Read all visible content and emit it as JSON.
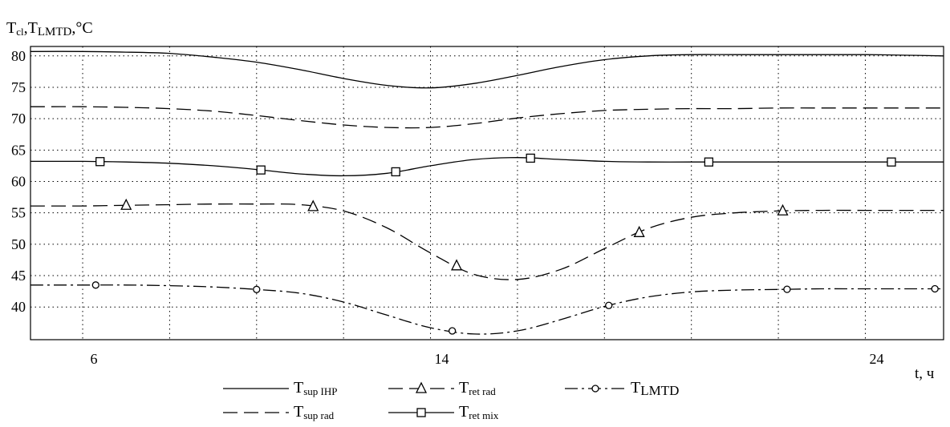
{
  "chart_data": {
    "type": "line",
    "ylabel": "Tcl,TLMTD,°C",
    "xlabel": "t, ч",
    "xlim": [
      4.8,
      25.8
    ],
    "ylim": [
      34.8,
      81.5
    ],
    "x_ticks": [
      6,
      14,
      24
    ],
    "y_ticks": [
      40,
      45,
      50,
      55,
      60,
      65,
      70,
      75,
      80
    ],
    "x_grid": [
      6,
      8,
      10,
      12,
      14,
      16,
      18,
      20,
      22,
      24
    ],
    "grid": true,
    "legend_position": "bottom",
    "series": [
      {
        "name": "Tsup IHP",
        "base": "T",
        "sub": "sup IHP",
        "style": "solid",
        "marker": "none",
        "x": [
          4.8,
          6,
          7,
          8,
          9,
          10,
          11,
          12,
          13,
          14,
          15,
          16,
          17,
          18,
          19,
          20,
          21,
          22,
          23,
          24,
          25,
          25.8
        ],
        "y": [
          80.7,
          80.7,
          80.6,
          80.4,
          79.8,
          79.0,
          77.8,
          76.4,
          75.3,
          74.9,
          75.6,
          76.9,
          78.3,
          79.4,
          80.0,
          80.2,
          80.2,
          80.2,
          80.2,
          80.2,
          80.1,
          80.0
        ]
      },
      {
        "name": "Tsup rad",
        "base": "T",
        "sub": "sup rad",
        "style": "dashed",
        "marker": "none",
        "x": [
          4.8,
          6,
          7,
          8,
          9,
          10,
          11,
          12,
          13,
          14,
          15,
          16,
          17,
          18,
          19,
          20,
          21,
          22,
          23,
          24,
          25,
          25.8
        ],
        "y": [
          71.9,
          71.9,
          71.8,
          71.6,
          71.2,
          70.5,
          69.7,
          69.0,
          68.6,
          68.6,
          69.2,
          70.1,
          70.8,
          71.3,
          71.5,
          71.6,
          71.6,
          71.7,
          71.7,
          71.7,
          71.7,
          71.7
        ]
      },
      {
        "name": "Tret mix",
        "base": "T",
        "sub": "ret mix",
        "style": "solid",
        "marker": "square",
        "x": [
          4.8,
          6,
          7,
          8,
          9,
          10,
          11,
          12,
          13,
          14,
          15,
          16,
          17,
          18,
          19,
          20,
          21,
          22,
          23,
          24,
          25,
          25.8
        ],
        "y": [
          63.2,
          63.2,
          63.1,
          62.9,
          62.5,
          61.9,
          61.2,
          60.9,
          61.3,
          62.5,
          63.5,
          63.8,
          63.5,
          63.2,
          63.1,
          63.1,
          63.1,
          63.1,
          63.1,
          63.1,
          63.1,
          63.1
        ],
        "markers_x": [
          6.4,
          10.1,
          13.2,
          16.3,
          20.4,
          24.6
        ]
      },
      {
        "name": "Tret rad",
        "base": "T",
        "sub": "ret rad",
        "style": "dashed",
        "marker": "triangle",
        "x": [
          4.8,
          6,
          7,
          8,
          9,
          10,
          11,
          12,
          13,
          14,
          15,
          16,
          17,
          18,
          19,
          20,
          21,
          22,
          23,
          24,
          25,
          25.8
        ],
        "y": [
          56.1,
          56.1,
          56.2,
          56.3,
          56.4,
          56.4,
          56.3,
          55.3,
          52.6,
          48.6,
          45.2,
          44.4,
          46.0,
          49.3,
          52.5,
          54.3,
          55.0,
          55.3,
          55.4,
          55.4,
          55.4,
          55.4
        ],
        "markers_x": [
          7.0,
          11.3,
          14.6,
          18.8,
          22.1
        ]
      },
      {
        "name": "TLMTD",
        "base": "T",
        "sub": "LMTD",
        "style": "dashdot",
        "marker": "circle",
        "x": [
          4.8,
          6,
          7,
          8,
          9,
          10,
          11,
          12,
          13,
          14,
          15,
          16,
          17,
          18,
          19,
          20,
          21,
          22,
          23,
          24,
          25,
          25.8
        ],
        "y": [
          43.5,
          43.5,
          43.5,
          43.4,
          43.2,
          42.8,
          42.2,
          40.8,
          38.7,
          36.7,
          35.7,
          36.2,
          38.0,
          40.1,
          41.6,
          42.4,
          42.7,
          42.8,
          42.9,
          42.9,
          42.9,
          42.9
        ],
        "markers_x": [
          6.3,
          10.0,
          14.5,
          18.1,
          22.2,
          25.6
        ]
      }
    ],
    "legend_layout": [
      {
        "series": 0,
        "col": 0,
        "row": 0
      },
      {
        "series": 3,
        "col": 1,
        "row": 0
      },
      {
        "series": 4,
        "col": 2,
        "row": 0
      },
      {
        "series": 1,
        "col": 0,
        "row": 1
      },
      {
        "series": 2,
        "col": 1,
        "row": 1
      }
    ]
  }
}
